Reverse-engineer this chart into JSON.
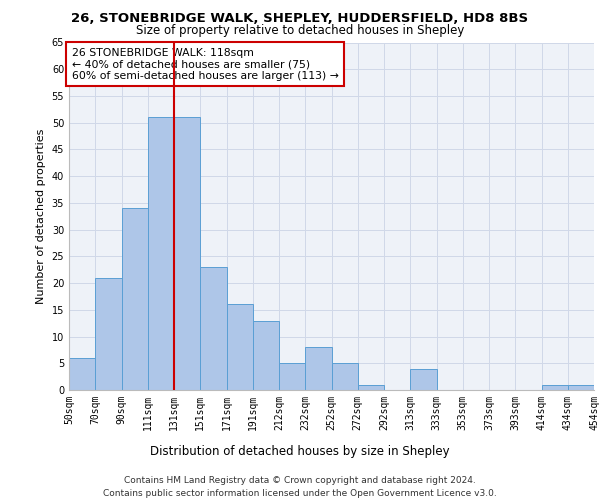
{
  "title1": "26, STONEBRIDGE WALK, SHEPLEY, HUDDERSFIELD, HD8 8BS",
  "title2": "Size of property relative to detached houses in Shepley",
  "xlabel": "Distribution of detached houses by size in Shepley",
  "ylabel": "Number of detached properties",
  "footer1": "Contains HM Land Registry data © Crown copyright and database right 2024.",
  "footer2": "Contains public sector information licensed under the Open Government Licence v3.0.",
  "annotation_line1": "26 STONEBRIDGE WALK: 118sqm",
  "annotation_line2": "← 40% of detached houses are smaller (75)",
  "annotation_line3": "60% of semi-detached houses are larger (113) →",
  "bar_values": [
    6,
    21,
    34,
    51,
    51,
    23,
    16,
    13,
    5,
    8,
    5,
    1,
    0,
    4,
    0,
    0,
    0,
    0,
    1,
    1
  ],
  "x_labels": [
    "50sqm",
    "70sqm",
    "90sqm",
    "111sqm",
    "131sqm",
    "151sqm",
    "171sqm",
    "191sqm",
    "212sqm",
    "232sqm",
    "252sqm",
    "272sqm",
    "292sqm",
    "313sqm",
    "333sqm",
    "353sqm",
    "373sqm",
    "393sqm",
    "414sqm",
    "434sqm",
    "454sqm"
  ],
  "bar_color": "#aec6e8",
  "bar_edge_color": "#5a9fd4",
  "vline_x": 3.5,
  "vline_color": "#cc0000",
  "grid_color": "#d0d8e8",
  "bg_color": "#eef2f8",
  "ylim": [
    0,
    65
  ],
  "yticks": [
    0,
    5,
    10,
    15,
    20,
    25,
    30,
    35,
    40,
    45,
    50,
    55,
    60,
    65
  ],
  "title1_fontsize": 9.5,
  "title2_fontsize": 8.5,
  "ylabel_fontsize": 8,
  "xlabel_fontsize": 8.5,
  "tick_fontsize": 7,
  "annotation_fontsize": 7.8,
  "footer_fontsize": 6.5
}
